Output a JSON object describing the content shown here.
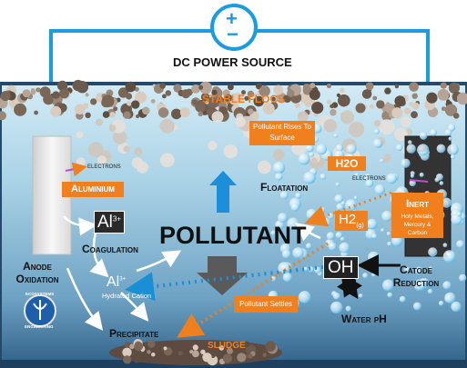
{
  "power": {
    "plus": "+",
    "minus": "−",
    "label": "DC POWER SOURCE"
  },
  "labels": {
    "stable_flocs": "STABLE FLOCS",
    "electrons_left": "ELECTRONS",
    "aluminium": "Aluminium",
    "pollutant_rises": "Pollutant Rises To Surface",
    "floatation": "Floatation",
    "h2o": "H2O",
    "electrons_right": "ELECTRONS",
    "inert_title": "Inert",
    "inert_sub": "Holy Metals, Mercury & Carbon",
    "al3_main": "Al",
    "al3_sup": "3+",
    "coagulation": "Coagulation",
    "pollutant": "POLLUTANT",
    "h2_main": "H2",
    "h2_sub": "(g)",
    "oh": "OH",
    "anode_oxidation": "Anode Oxidation",
    "al_hyd_main": "Al",
    "al_hyd_sup": "3+",
    "hydrated_cation": "Hydrated Cation",
    "catode_reduction": "Catode Reduction",
    "pollutant_settles": "Pollutant Settles",
    "water_ph": "Water pH",
    "precipitate": "Precipitate",
    "sludge": "SLUDGE",
    "logo_top": "ECOSYSTEMS",
    "logo_bottom": "ENGINEERING"
  },
  "colors": {
    "orange": "#f07f1e",
    "wire_blue": "#1b9be0",
    "dark_navy": "#183a5c",
    "water_light": "#cbe6f2",
    "water_deep": "#5b93b8",
    "anode": "#e9e9e9",
    "cathode": "#3a3a3a"
  },
  "icons": [
    "power-source-icon",
    "upward-arrow-icon",
    "downward-arrow-icon",
    "ecosystems-logo-icon"
  ]
}
